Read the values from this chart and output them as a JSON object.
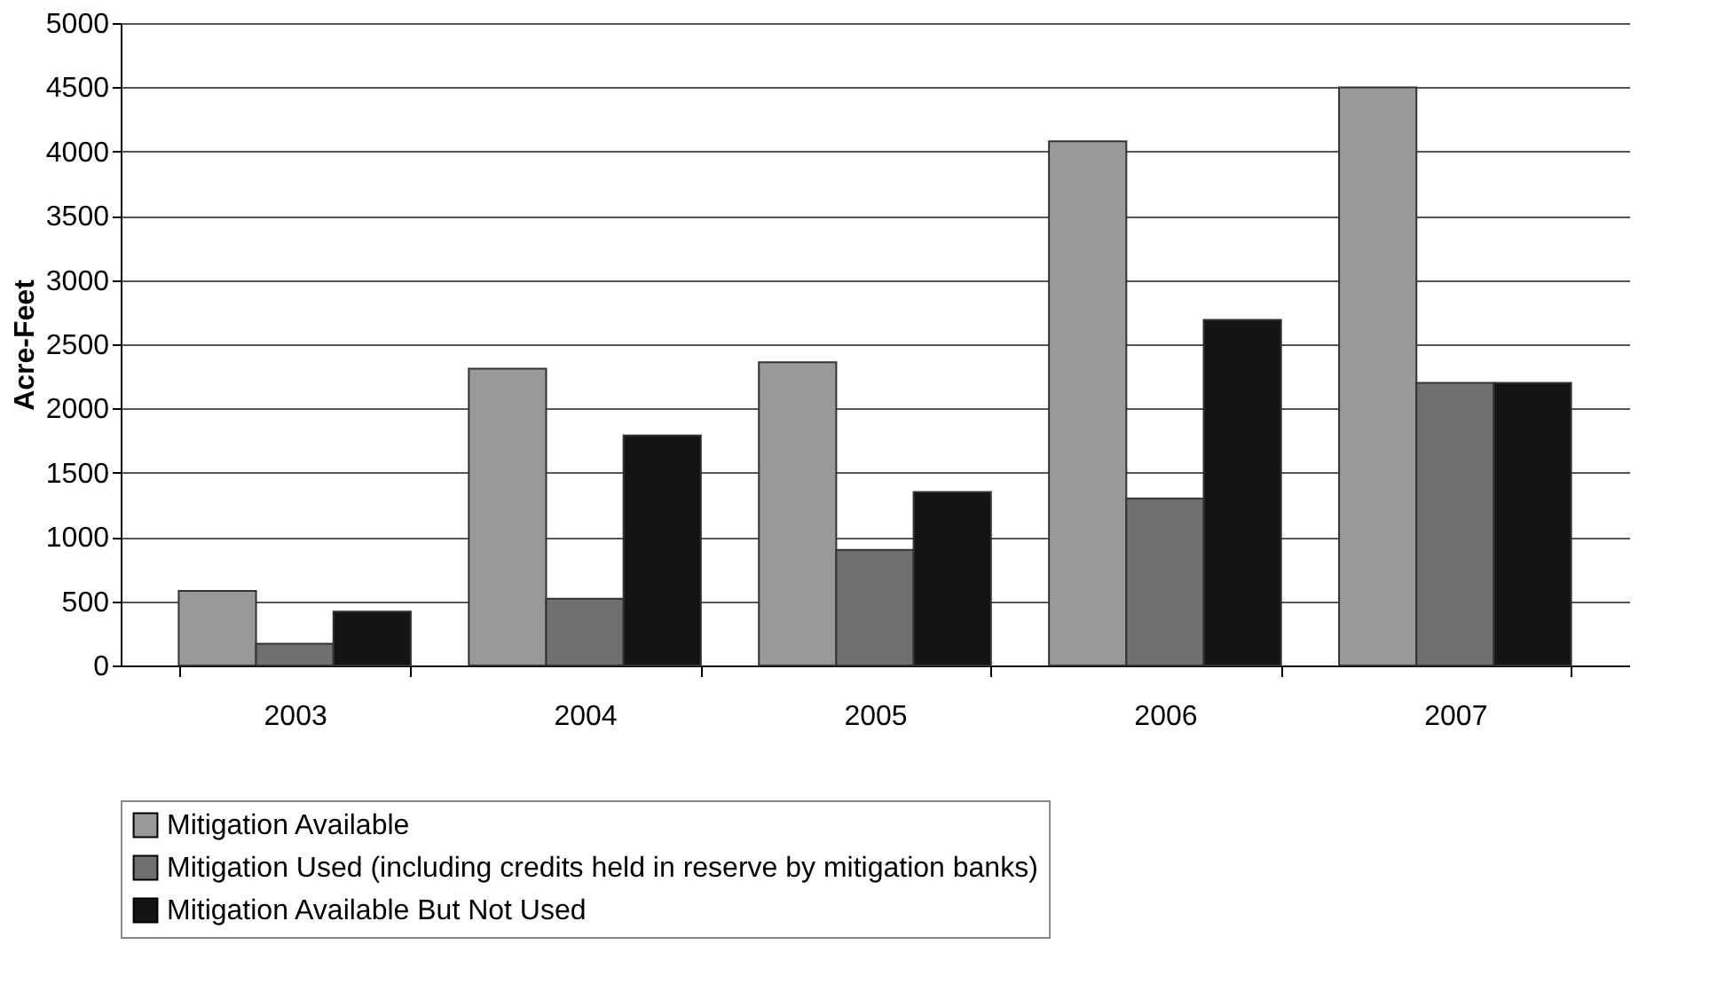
{
  "chart_data": {
    "type": "bar",
    "ylabel": "Acre-Feet",
    "categories": [
      "2003",
      "2004",
      "2005",
      "2006",
      "2007"
    ],
    "series": [
      {
        "name": "Mitigation Available",
        "color": "#999999",
        "values": [
          580,
          2310,
          2360,
          4080,
          4500
        ]
      },
      {
        "name": "Mitigation Used (including credits held in reserve by mitigation banks)",
        "color": "#707070",
        "values": [
          170,
          520,
          900,
          1300,
          2200
        ]
      },
      {
        "name": "Mitigation Available But Not Used",
        "color": "#141414",
        "values": [
          420,
          1790,
          1350,
          2690,
          2200
        ]
      }
    ],
    "ylim": [
      0,
      5000
    ],
    "yticks": [
      0,
      500,
      1000,
      1500,
      2000,
      2500,
      3000,
      3500,
      4000,
      4500,
      5000
    ],
    "grid": "y",
    "legend": "bottom"
  }
}
